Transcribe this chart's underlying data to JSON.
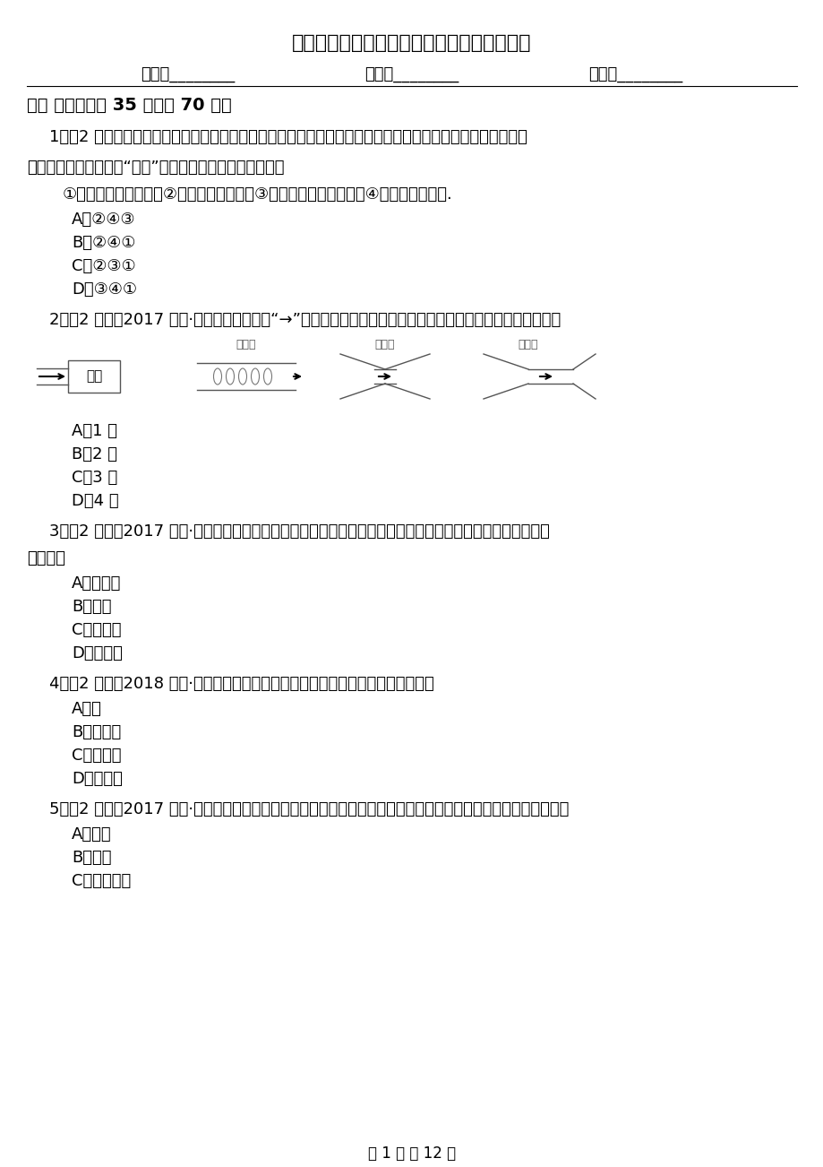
{
  "title": "河北省保定市八年级上学期生物期中考试试卷",
  "name_label": "姓名：________",
  "class_label": "班级：________",
  "score_label": "成绩：________",
  "section_title": "一、 单选题（共 35 题；共 70 分）",
  "bg_color": "#ffffff",
  "footer": "第 1 页 共 12 页"
}
